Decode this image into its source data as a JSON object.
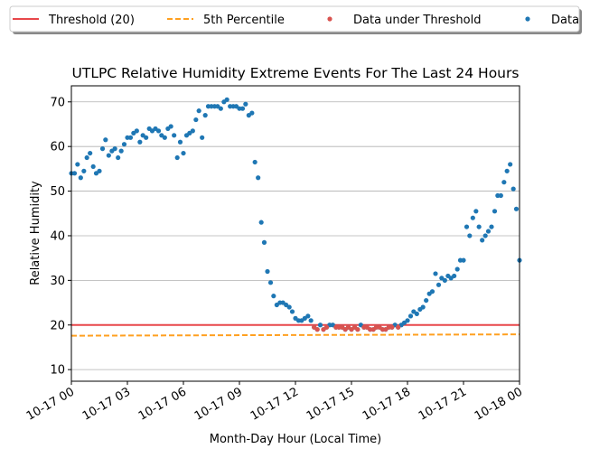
{
  "chart_data": {
    "type": "scatter",
    "title": "UTLPC Relative Humidity Extreme Events For The Last 24 Hours",
    "xlabel": "Month-Day Hour (Local Time)",
    "ylabel": "Relative Humidity",
    "xlim": [
      0,
      24
    ],
    "xticks": [
      {
        "value": 0,
        "label": "10-17 00"
      },
      {
        "value": 3,
        "label": "10-17 03"
      },
      {
        "value": 6,
        "label": "10-17 06"
      },
      {
        "value": 9,
        "label": "10-17 09"
      },
      {
        "value": 12,
        "label": "10-17 12"
      },
      {
        "value": 15,
        "label": "10-17 15"
      },
      {
        "value": 18,
        "label": "10-17 18"
      },
      {
        "value": 21,
        "label": "10-17 21"
      },
      {
        "value": 24,
        "label": "10-18 00"
      }
    ],
    "ylim": [
      7.4,
      73.6
    ],
    "yticks": [
      10,
      20,
      30,
      40,
      50,
      60,
      70
    ],
    "grid": true,
    "legend": "top",
    "series": [
      {
        "name": "Threshold (20)",
        "kind": "line",
        "color": "#e8474a",
        "x": [
          0,
          24
        ],
        "values": [
          20,
          20
        ]
      },
      {
        "name": "5th Percentile",
        "kind": "dashed-line",
        "color": "#ffa020",
        "x": [
          0,
          24
        ],
        "values": [
          17.6,
          17.9
        ]
      },
      {
        "name": "Data under Threshold",
        "kind": "points",
        "color": "#d9534f",
        "x": [
          13,
          13.17,
          13.5,
          13.67,
          14.17,
          14.33,
          14.5,
          14.67,
          14.83,
          15,
          15.17,
          15.33,
          15.67,
          15.83,
          16,
          16.17,
          16.33,
          16.5,
          16.67,
          16.83,
          17,
          17.17,
          17.5
        ],
        "values": [
          19.5,
          19,
          19,
          19.5,
          19.5,
          19.5,
          19.5,
          19,
          19.5,
          19,
          19.5,
          19,
          19.5,
          19.5,
          19,
          19,
          19.5,
          19.5,
          19,
          19,
          19.5,
          19.5,
          19.5
        ]
      },
      {
        "name": "Data",
        "kind": "points",
        "color": "#1f77b4",
        "x": [
          0,
          0.17,
          0.33,
          0.5,
          0.67,
          0.83,
          1,
          1.17,
          1.33,
          1.5,
          1.67,
          1.83,
          2,
          2.17,
          2.33,
          2.5,
          2.67,
          2.83,
          3,
          3.17,
          3.33,
          3.5,
          3.67,
          3.83,
          4,
          4.17,
          4.33,
          4.5,
          4.67,
          4.83,
          5,
          5.17,
          5.33,
          5.5,
          5.67,
          5.83,
          6,
          6.17,
          6.33,
          6.5,
          6.67,
          6.83,
          7,
          7.17,
          7.33,
          7.5,
          7.67,
          7.83,
          8,
          8.17,
          8.33,
          8.5,
          8.67,
          8.83,
          9,
          9.17,
          9.33,
          9.5,
          9.67,
          9.83,
          10,
          10.17,
          10.33,
          10.5,
          10.67,
          10.83,
          11,
          11.17,
          11.33,
          11.5,
          11.67,
          11.83,
          12,
          12.17,
          12.33,
          12.5,
          12.67,
          12.83,
          13,
          13.17,
          13.33,
          13.5,
          13.67,
          13.83,
          14,
          14.17,
          14.33,
          14.5,
          14.67,
          14.83,
          15,
          15.17,
          15.33,
          15.5,
          15.67,
          15.83,
          16,
          16.17,
          16.33,
          16.5,
          16.67,
          16.83,
          17,
          17.17,
          17.33,
          17.5,
          17.67,
          17.83,
          18,
          18.17,
          18.33,
          18.5,
          18.67,
          18.83,
          19,
          19.17,
          19.33,
          19.5,
          19.67,
          19.83,
          20,
          20.17,
          20.33,
          20.5,
          20.67,
          20.83,
          21,
          21.17,
          21.33,
          21.5,
          21.67,
          21.83,
          22,
          22.17,
          22.33,
          22.5,
          22.67,
          22.83,
          23,
          23.17,
          23.33,
          23.5,
          23.67,
          23.83,
          24
        ],
        "values": [
          54,
          54,
          56,
          53,
          54.5,
          57.5,
          58.5,
          55.5,
          54,
          54.5,
          59.5,
          61.5,
          58,
          59,
          59.5,
          57.5,
          59,
          60.5,
          62,
          62,
          63,
          63.5,
          61,
          62.5,
          62,
          64,
          63.5,
          64,
          63.5,
          62.5,
          62,
          64,
          64.5,
          62.5,
          57.5,
          61,
          58.5,
          62.5,
          63,
          63.5,
          66,
          68,
          62,
          67,
          69,
          69,
          69,
          69,
          68.5,
          70,
          70.5,
          69,
          69,
          69,
          68.5,
          68.5,
          69.5,
          67,
          67.5,
          56.5,
          53,
          43,
          38.5,
          32,
          29.5,
          26.5,
          24.5,
          25,
          25,
          24.5,
          24,
          23,
          21.5,
          21,
          21,
          21.5,
          22,
          21,
          19.5,
          19,
          20,
          19,
          19.5,
          20,
          20,
          19.5,
          19.5,
          19.5,
          19,
          19.5,
          19,
          19.5,
          19,
          20,
          19.5,
          19.5,
          19,
          19,
          19.5,
          19.5,
          19,
          19,
          19.5,
          19.5,
          20,
          19.5,
          20,
          20.5,
          21,
          22,
          23,
          22.5,
          23.5,
          24,
          25.5,
          27,
          27.5,
          31.5,
          29,
          30.5,
          30,
          31,
          30.5,
          31,
          32.5,
          34.5,
          34.5,
          42,
          40,
          44,
          45.5,
          42,
          39,
          40,
          41,
          42,
          45.5,
          49,
          49,
          52,
          54.5,
          56,
          50.5,
          46,
          34.5
        ]
      }
    ]
  }
}
